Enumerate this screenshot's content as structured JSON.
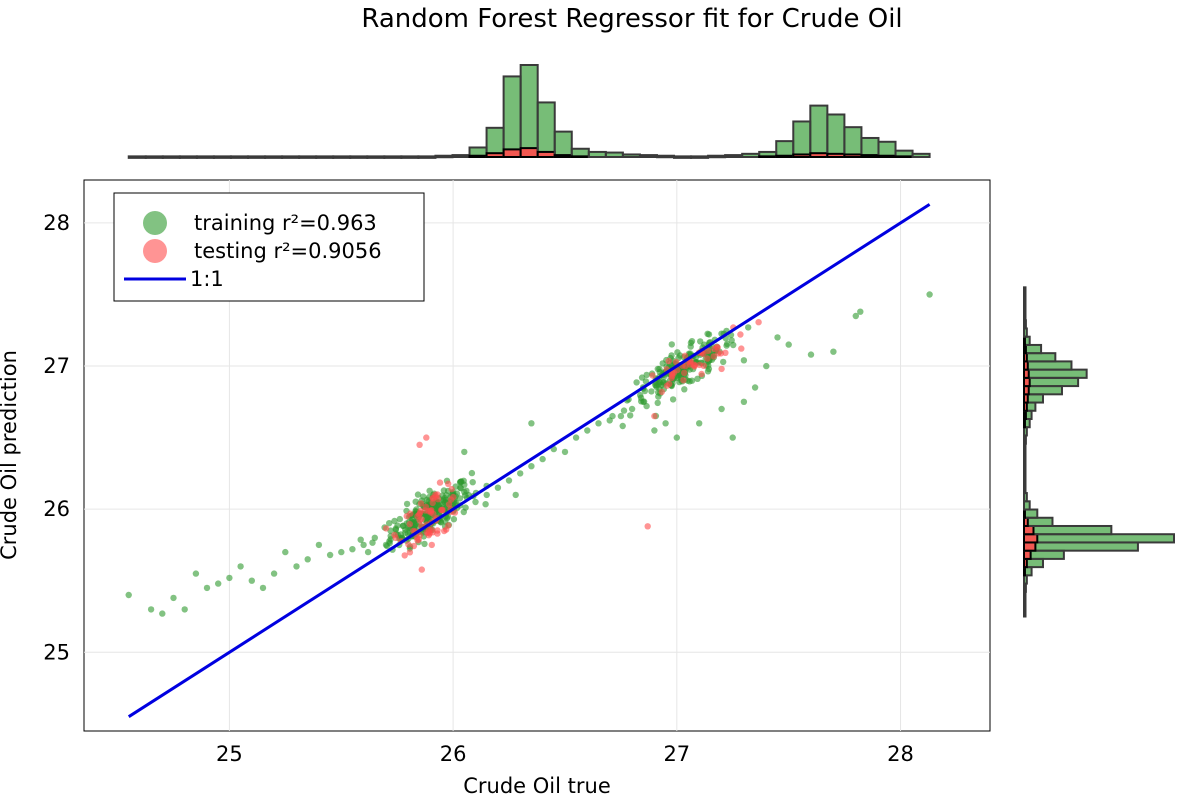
{
  "chart_data": {
    "type": "scatter",
    "title": "Random Forest Regressor fit for Crude Oil",
    "xlabel": "Crude Oil true",
    "ylabel": "Crude Oil prediction",
    "xlim": [
      24.35,
      28.4
    ],
    "ylim": [
      24.45,
      28.3
    ],
    "xticks": [
      25,
      26,
      27,
      28
    ],
    "yticks": [
      25,
      26,
      27,
      28
    ],
    "grid": true,
    "legend_position": "top-left",
    "colors": {
      "training": "#2e9a2e",
      "testing": "#ff4d4d",
      "line": "#0000e0",
      "hist_edge": "#3a3a3a"
    },
    "series": [
      {
        "name": "training r²=0.963",
        "clusters": [
          {
            "cx": 25.9,
            "cy": 25.97,
            "sx": 0.09,
            "sy": 0.12,
            "n": 260
          },
          {
            "cx": 27.03,
            "cy": 26.98,
            "sx": 0.12,
            "sy": 0.11,
            "n": 200
          }
        ],
        "trail": [
          [
            24.55,
            25.4
          ],
          [
            24.65,
            25.3
          ],
          [
            24.7,
            25.27
          ],
          [
            24.75,
            25.38
          ],
          [
            24.8,
            25.3
          ],
          [
            24.85,
            25.55
          ],
          [
            24.9,
            25.45
          ],
          [
            24.95,
            25.48
          ],
          [
            25.0,
            25.52
          ],
          [
            25.05,
            25.6
          ],
          [
            25.1,
            25.5
          ],
          [
            25.15,
            25.45
          ],
          [
            25.2,
            25.55
          ],
          [
            25.25,
            25.7
          ],
          [
            25.3,
            25.6
          ],
          [
            25.35,
            25.65
          ],
          [
            25.4,
            25.75
          ],
          [
            25.45,
            25.68
          ],
          [
            25.5,
            25.7
          ],
          [
            25.55,
            25.72
          ],
          [
            25.6,
            25.75
          ],
          [
            25.62,
            25.7
          ],
          [
            25.65,
            25.8
          ],
          [
            25.7,
            25.75
          ],
          [
            25.72,
            25.85
          ],
          [
            26.1,
            26.05
          ],
          [
            26.15,
            26.1
          ],
          [
            26.2,
            26.15
          ],
          [
            26.25,
            26.2
          ],
          [
            26.28,
            26.1
          ],
          [
            26.3,
            26.25
          ],
          [
            26.35,
            26.3
          ],
          [
            26.4,
            26.35
          ],
          [
            26.45,
            26.42
          ],
          [
            26.5,
            26.4
          ],
          [
            26.55,
            26.5
          ],
          [
            26.6,
            26.55
          ],
          [
            26.65,
            26.6
          ],
          [
            26.7,
            26.62
          ],
          [
            26.75,
            26.65
          ],
          [
            26.8,
            26.7
          ],
          [
            26.85,
            26.75
          ],
          [
            26.9,
            26.55
          ],
          [
            26.95,
            26.6
          ],
          [
            27.0,
            26.5
          ],
          [
            27.1,
            26.6
          ],
          [
            27.2,
            26.7
          ],
          [
            27.25,
            26.5
          ],
          [
            27.3,
            26.75
          ],
          [
            27.35,
            26.85
          ],
          [
            27.4,
            27.0
          ],
          [
            27.45,
            27.2
          ],
          [
            27.5,
            27.15
          ],
          [
            27.6,
            27.08
          ],
          [
            27.7,
            27.1
          ],
          [
            27.8,
            27.35
          ],
          [
            27.82,
            27.38
          ],
          [
            28.13,
            27.5
          ],
          [
            26.35,
            26.6
          ],
          [
            26.05,
            26.4
          ]
        ]
      },
      {
        "name": "testing r²=0.9056",
        "clusters": [
          {
            "cx": 25.9,
            "cy": 25.95,
            "sx": 0.07,
            "sy": 0.14,
            "n": 70
          },
          {
            "cx": 27.05,
            "cy": 27.0,
            "sx": 0.1,
            "sy": 0.08,
            "n": 45
          }
        ],
        "trail": [
          [
            25.88,
            26.5
          ],
          [
            25.85,
            26.45
          ],
          [
            26.87,
            25.88
          ],
          [
            26.9,
            26.65
          ],
          [
            27.2,
            26.98
          ]
        ]
      },
      {
        "name": "1:1",
        "x": [
          24.55,
          28.13
        ],
        "y": [
          24.55,
          28.13
        ]
      }
    ],
    "marginal_x": {
      "range": [
        24.55,
        28.13
      ],
      "bins": 47,
      "training_counts": [
        1,
        1,
        1,
        1,
        1,
        1,
        1,
        1,
        1,
        1,
        1,
        1,
        1,
        1,
        1,
        1,
        1,
        1,
        2,
        3,
        15,
        46,
        127,
        145,
        86,
        40,
        13,
        8,
        7,
        4,
        3,
        2,
        1,
        1,
        2,
        3,
        5,
        8,
        25,
        56,
        81,
        67,
        47,
        30,
        24,
        10,
        5
      ],
      "testing_counts": [
        0,
        0,
        0,
        0,
        0,
        0,
        0,
        0,
        0,
        0,
        0,
        0,
        0,
        0,
        0,
        0,
        0,
        0,
        0,
        0,
        2,
        6,
        12,
        14,
        8,
        3,
        1,
        0,
        0,
        0,
        0,
        0,
        0,
        0,
        0,
        0,
        0,
        1,
        2,
        4,
        6,
        5,
        4,
        3,
        2,
        1,
        0
      ]
    },
    "marginal_y": {
      "range": [
        25.25,
        27.55
      ],
      "bins": 40,
      "training_counts": [
        1,
        1,
        1,
        2,
        3,
        8,
        20,
        42,
        120,
        158,
        92,
        30,
        14,
        6,
        3,
        1,
        1,
        1,
        1,
        1,
        1,
        2,
        3,
        6,
        8,
        12,
        20,
        40,
        57,
        66,
        50,
        33,
        18,
        6,
        3,
        2,
        1,
        1,
        1,
        1
      ],
      "testing_counts": [
        0,
        0,
        0,
        0,
        0,
        1,
        3,
        7,
        12,
        14,
        10,
        4,
        1,
        0,
        0,
        0,
        0,
        0,
        0,
        0,
        0,
        0,
        0,
        1,
        2,
        3,
        4,
        5,
        6,
        5,
        4,
        3,
        2,
        1,
        0,
        0,
        0,
        0,
        0,
        0
      ]
    }
  }
}
